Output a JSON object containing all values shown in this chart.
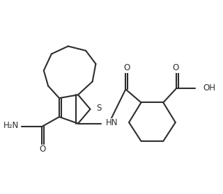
{
  "background_color": "#ffffff",
  "line_color": "#2d2d2d",
  "line_width": 1.5,
  "figsize": [
    3.2,
    2.79
  ],
  "dpi": 100,
  "xlim": [
    0,
    10
  ],
  "ylim": [
    0,
    8.7
  ]
}
